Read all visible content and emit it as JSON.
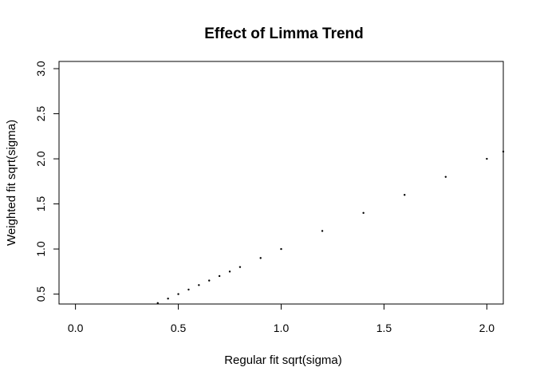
{
  "chart_data": {
    "type": "scatter",
    "title": "Effect of Limma Trend",
    "xlabel": "Regular fit sqrt(sigma)",
    "ylabel": "Weighted fit sqrt(sigma)",
    "xlim": [
      -0.08,
      2.08
    ],
    "ylim": [
      0.39,
      3.08
    ],
    "x_ticks": [
      "0.0",
      "0.5",
      "1.0",
      "1.5",
      "2.0"
    ],
    "y_ticks": [
      "0.5",
      "1.0",
      "1.5",
      "2.0",
      "2.5",
      "3.0"
    ],
    "grid": false,
    "legend": "none",
    "point_color": "#000000",
    "series": [
      {
        "x": [
          0.4,
          0.45,
          0.5,
          0.55,
          0.6,
          0.65,
          0.7,
          0.75,
          0.8,
          0.9,
          1.0,
          1.2,
          1.4,
          1.6,
          1.8,
          2.0,
          2.08
        ],
        "y": [
          0.4,
          0.45,
          0.5,
          0.55,
          0.6,
          0.65,
          0.7,
          0.75,
          0.8,
          0.9,
          1.0,
          1.2,
          1.4,
          1.6,
          1.8,
          2.0,
          2.08
        ]
      }
    ]
  }
}
